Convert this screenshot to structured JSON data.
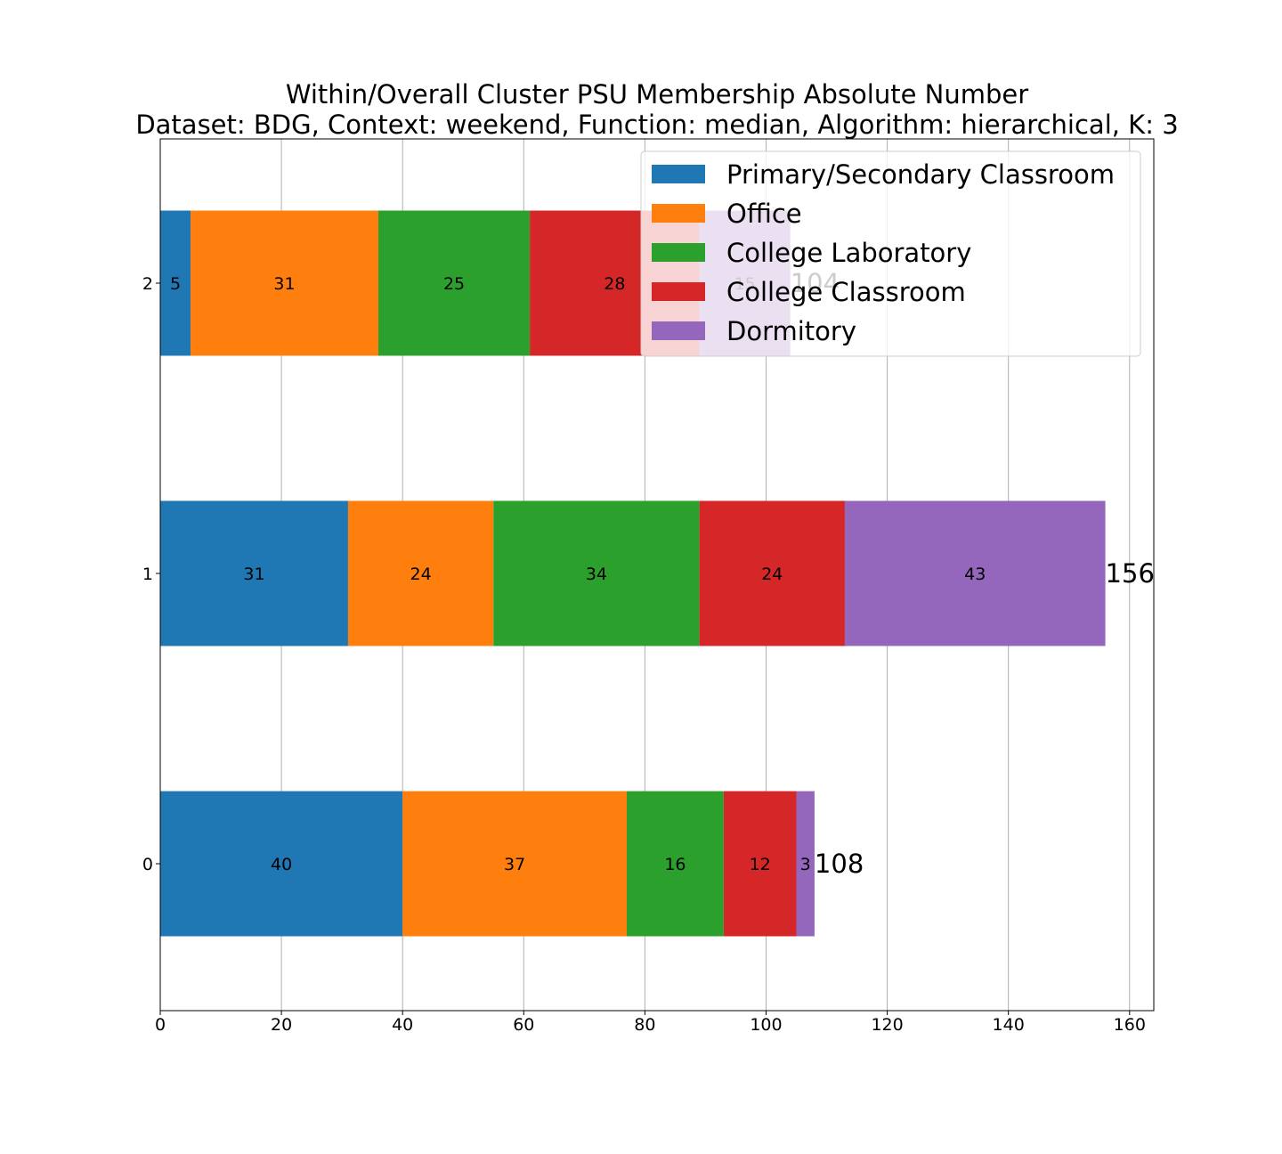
{
  "chart_data": {
    "type": "bar",
    "orientation": "horizontal",
    "stacked": true,
    "title": "Within/Overall Cluster PSU Membership Absolute Number",
    "subtitle": "Dataset: BDG, Context: weekend, Function: median, Algorithm: hierarchical, K: 3",
    "xlabel": "",
    "ylabel": "",
    "categories": [
      "0",
      "1",
      "2"
    ],
    "xlim": [
      0,
      164
    ],
    "x_ticks": [
      "0",
      "20",
      "40",
      "60",
      "80",
      "100",
      "120",
      "140",
      "160"
    ],
    "grid": "vertical",
    "legend_position": "top-right",
    "series": [
      {
        "name": "Primary/Secondary Classroom",
        "color": "#1f77b4",
        "values": [
          40,
          31,
          5
        ]
      },
      {
        "name": "Office",
        "color": "#ff7f0e",
        "values": [
          37,
          24,
          31
        ]
      },
      {
        "name": "College Laboratory",
        "color": "#2ca02c",
        "values": [
          16,
          34,
          25
        ]
      },
      {
        "name": "College Classroom",
        "color": "#d62728",
        "values": [
          12,
          24,
          28
        ]
      },
      {
        "name": "Dormitory",
        "color": "#9467bd",
        "values": [
          3,
          43,
          15
        ]
      }
    ],
    "totals": [
      108,
      156,
      104
    ]
  }
}
